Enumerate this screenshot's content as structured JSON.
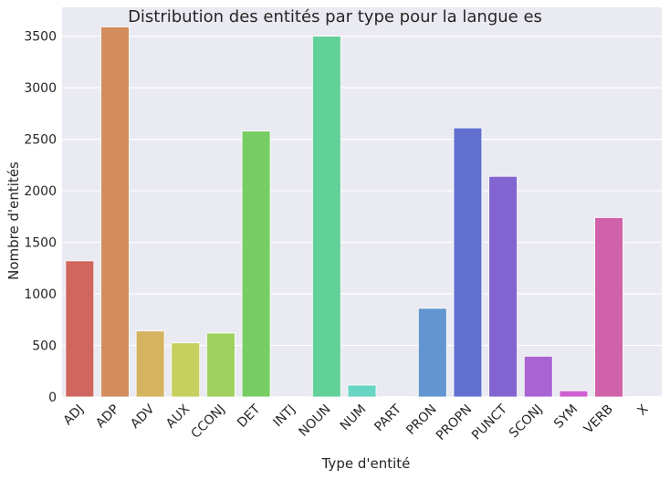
{
  "chart_data": {
    "type": "bar",
    "title": "Distribution des entités par type pour la langue es",
    "xlabel": "Type d'entité",
    "ylabel": "Nombre d'entités",
    "categories": [
      "ADJ",
      "ADP",
      "ADV",
      "AUX",
      "CCONJ",
      "DET",
      "INTJ",
      "NOUN",
      "NUM",
      "PART",
      "PRON",
      "PROPN",
      "PUNCT",
      "SCONJ",
      "SYM",
      "VERB",
      "X"
    ],
    "values": [
      1320,
      3590,
      640,
      525,
      620,
      2580,
      3,
      3500,
      115,
      5,
      860,
      2610,
      2140,
      395,
      60,
      1740,
      5
    ],
    "ylim": [
      0,
      3780
    ],
    "yticks": [
      0,
      500,
      1000,
      1500,
      2000,
      2500,
      3000,
      3500
    ],
    "grid": true,
    "colors": [
      "#d0675f",
      "#d38d5f",
      "#d4b460",
      "#c6d05f",
      "#9fd05f",
      "#77cd63",
      "#5fd076",
      "#62d099",
      "#67d5c2",
      "#63c4d3",
      "#6395d0",
      "#6270d0",
      "#8265d0",
      "#a963d3",
      "#cf60cf",
      "#d062a9",
      "#d0627a"
    ],
    "background": "#eaeaf2",
    "gridcolor": "#ffffff"
  }
}
